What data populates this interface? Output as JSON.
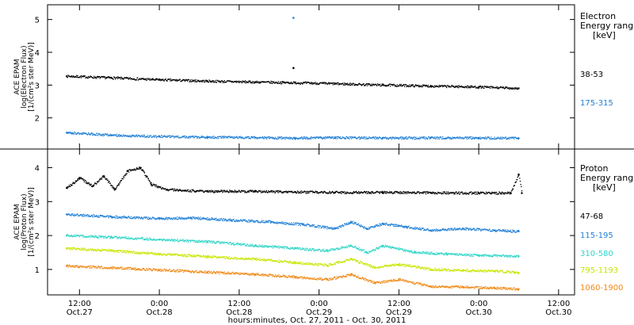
{
  "colors": {
    "black": "#000000",
    "blue": "#1f7fd6",
    "cyan": "#2fd6c8",
    "yellow": "#c8e600",
    "orange": "#f08a18"
  },
  "x_axis": {
    "ticks": [
      {
        "x": 0.5,
        "time": "12:00",
        "day": "Oct.27"
      },
      {
        "x": 1.0,
        "time": "0:00",
        "day": "Oct.28"
      },
      {
        "x": 1.5,
        "time": "12:00",
        "day": "Oct.28"
      },
      {
        "x": 2.0,
        "time": "0:00",
        "day": "Oct.29"
      },
      {
        "x": 2.5,
        "time": "12:00",
        "day": "Oct.29"
      },
      {
        "x": 3.0,
        "time": "0:00",
        "day": "Oct.30"
      },
      {
        "x": 3.5,
        "time": "12:00",
        "day": "Oct.30"
      }
    ],
    "label": "hours:minutes, Oct. 27, 2011 - Oct. 30, 2011"
  },
  "chart_data": [
    {
      "type": "scatter",
      "panel": "top",
      "ylabel": [
        "ACE EPAM",
        "log(Electron Flux)",
        "[1/(cm²s ster MeV)]"
      ],
      "ylim": [
        1.05,
        5.45
      ],
      "yticks": [
        2,
        3,
        4,
        5
      ],
      "xlim": [
        0.3,
        3.6
      ],
      "legend_title": [
        "Electron",
        "Energy ranges",
        "[keV]"
      ],
      "series": [
        {
          "name": "38-53",
          "color": "black",
          "x": [
            0.42,
            0.7,
            1.0,
            1.3,
            1.6,
            1.85,
            2.1,
            2.4,
            2.7,
            3.0,
            3.25
          ],
          "y": [
            3.27,
            3.22,
            3.16,
            3.12,
            3.09,
            3.07,
            3.04,
            3.0,
            2.97,
            2.94,
            2.9
          ],
          "outliers": [
            {
              "x": 1.84,
              "y": 3.52
            }
          ]
        },
        {
          "name": "175-315",
          "color": "blue",
          "x": [
            0.42,
            0.7,
            1.0,
            1.3,
            1.6,
            1.85,
            2.1,
            2.4,
            2.7,
            3.0,
            3.25
          ],
          "y": [
            1.55,
            1.47,
            1.43,
            1.41,
            1.4,
            1.38,
            1.4,
            1.38,
            1.39,
            1.39,
            1.38
          ],
          "outliers": [
            {
              "x": 1.84,
              "y": 5.05
            }
          ]
        }
      ]
    },
    {
      "type": "scatter",
      "panel": "bottom",
      "ylabel": [
        "ACE EPAM",
        "log(Proton Flux)",
        "[1/(cm²s ster MeV)]"
      ],
      "ylim": [
        0.25,
        4.55
      ],
      "yticks": [
        1,
        2,
        3,
        4
      ],
      "xlim": [
        0.3,
        3.6
      ],
      "legend_title": [
        "Proton",
        "Energy ranges",
        "[keV]"
      ],
      "series": [
        {
          "name": "47-68",
          "color": "black",
          "x": [
            0.42,
            0.5,
            0.58,
            0.65,
            0.72,
            0.8,
            0.88,
            0.95,
            1.05,
            1.3,
            1.6,
            1.85,
            2.1,
            2.4,
            2.7,
            3.0,
            3.2,
            3.25,
            3.27
          ],
          "y": [
            3.4,
            3.7,
            3.45,
            3.75,
            3.35,
            3.9,
            4.0,
            3.5,
            3.35,
            3.3,
            3.3,
            3.28,
            3.27,
            3.27,
            3.26,
            3.25,
            3.25,
            3.8,
            3.25
          ]
        },
        {
          "name": "115-195",
          "color": "blue",
          "x": [
            0.42,
            0.7,
            1.0,
            1.2,
            1.45,
            1.7,
            1.9,
            2.1,
            2.2,
            2.3,
            2.4,
            2.55,
            2.7,
            2.9,
            3.1,
            3.25
          ],
          "y": [
            2.62,
            2.55,
            2.5,
            2.52,
            2.45,
            2.4,
            2.32,
            2.2,
            2.4,
            2.2,
            2.35,
            2.25,
            2.15,
            2.2,
            2.15,
            2.12
          ]
        },
        {
          "name": "310-580",
          "color": "cyan",
          "x": [
            0.42,
            0.7,
            1.0,
            1.3,
            1.6,
            1.85,
            2.05,
            2.2,
            2.3,
            2.4,
            2.6,
            2.8,
            3.0,
            3.25
          ],
          "y": [
            2.0,
            1.95,
            1.88,
            1.82,
            1.7,
            1.62,
            1.55,
            1.7,
            1.5,
            1.7,
            1.5,
            1.45,
            1.42,
            1.38
          ]
        },
        {
          "name": "795-1193",
          "color": "yellow",
          "x": [
            0.42,
            0.7,
            1.0,
            1.3,
            1.6,
            1.85,
            2.05,
            2.2,
            2.35,
            2.5,
            2.7,
            2.9,
            3.1,
            3.25
          ],
          "y": [
            1.62,
            1.55,
            1.45,
            1.38,
            1.3,
            1.2,
            1.12,
            1.3,
            1.05,
            1.15,
            1.0,
            0.97,
            0.95,
            0.9
          ]
        },
        {
          "name": "1060-1900",
          "color": "orange",
          "x": [
            0.42,
            0.7,
            1.0,
            1.3,
            1.6,
            1.85,
            2.05,
            2.2,
            2.35,
            2.5,
            2.7,
            2.9,
            3.1,
            3.25
          ],
          "y": [
            1.1,
            1.05,
            0.98,
            0.92,
            0.85,
            0.78,
            0.7,
            0.85,
            0.6,
            0.7,
            0.5,
            0.48,
            0.45,
            0.42
          ]
        }
      ]
    }
  ]
}
